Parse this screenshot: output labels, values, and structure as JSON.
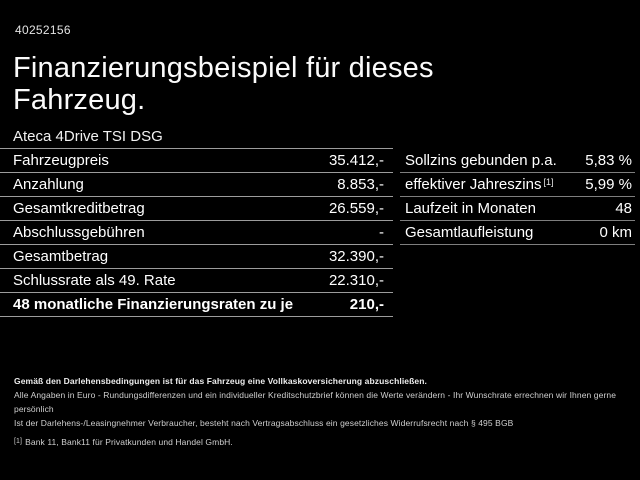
{
  "colors": {
    "background": "#000000",
    "text": "#ffffff",
    "divider_left_table": "#9c9c9c",
    "divider_right_table": "#7e7e7e"
  },
  "header": {
    "doc_id": "40252156",
    "title_line1": "Finanzierungsbeispiel für dieses",
    "title_line2": "Fahrzeug.",
    "model": "Ateca 4Drive TSI DSG"
  },
  "left_table": {
    "rows": [
      {
        "label": "Fahrzeugpreis",
        "value": "35.412,-"
      },
      {
        "label": "Anzahlung",
        "value": "8.853,-"
      },
      {
        "label": "Gesamtkreditbetrag",
        "value": "26.559,-"
      },
      {
        "label": "Abschlussgebühren",
        "value": "-"
      },
      {
        "label": "Gesamtbetrag",
        "value": "32.390,-"
      },
      {
        "label": "Schlussrate als 49. Rate",
        "value": "22.310,-"
      },
      {
        "label": "48 monatliche Finanzierungsraten zu je",
        "value": "210,-"
      }
    ]
  },
  "right_table": {
    "rows": [
      {
        "label": "Sollzins gebunden p.a.",
        "ref": "",
        "value": "5,83 %"
      },
      {
        "label": "effektiver Jahreszins",
        "ref": "[1]",
        "value": "5,99 %"
      },
      {
        "label": "Laufzeit in Monaten",
        "ref": "",
        "value": "48"
      },
      {
        "label": "Gesamtlaufleistung",
        "ref": "",
        "value": "0 km"
      }
    ]
  },
  "footer": {
    "line1": "Gemäß den Darlehensbedingungen ist für das Fahrzeug eine Vollkaskoversicherung abzuschließen.",
    "line2": "Alle Angaben in Euro - Rundungsdifferenzen und ein individueller Kreditschutzbrief können die Werte verändern - Ihr Wunschrate errechnen wir Ihnen gerne persönlich",
    "line3": "Ist der Darlehens-/Leasingnehmer Verbraucher, besteht nach Vertragsabschluss ein gesetzliches Widerrufsrecht nach § 495 BGB",
    "footnote_ref": "[1]",
    "footnote_text": "Bank 11, Bank11 für Privatkunden und Handel GmbH."
  }
}
